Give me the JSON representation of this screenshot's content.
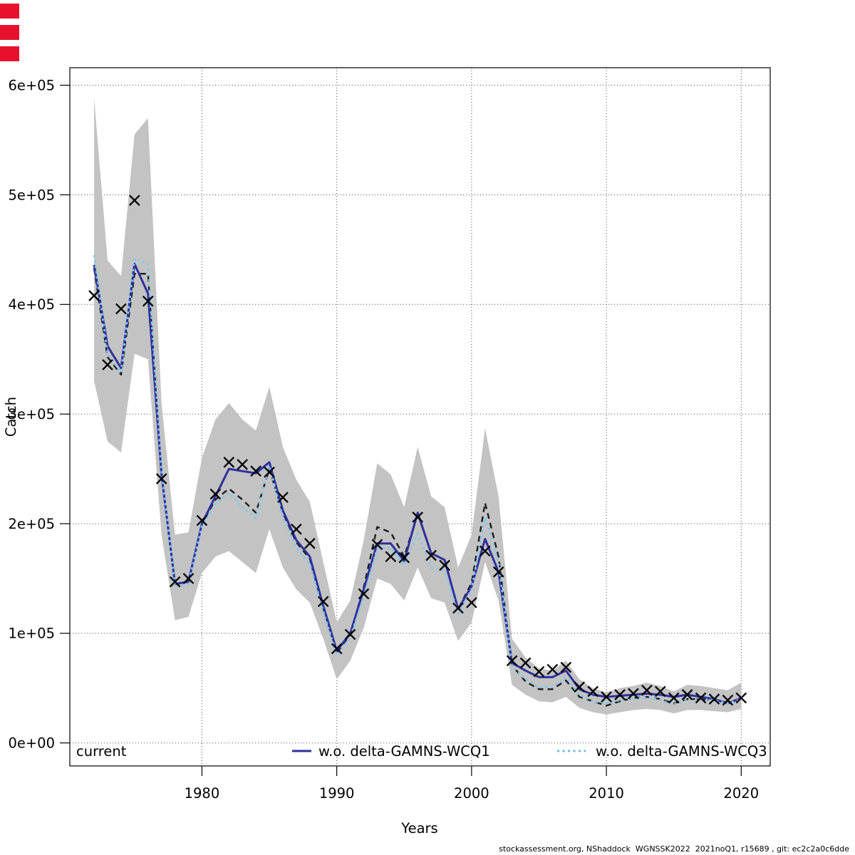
{
  "page": {
    "background": "#ffffff"
  },
  "corner_markers": {
    "count": 3,
    "color": "#e8112d"
  },
  "footer": {
    "text": "stockassessment.org, NShaddock  WGNSSK2022  2021noQ1, r15689 , git: ec2c2a0c6dde"
  },
  "legend": {
    "position": "bottom-inside",
    "items": [
      {
        "label": "current",
        "style": "none",
        "color": "#1c1c1c"
      },
      {
        "label": "w.o. delta-GAMNS-WCQ1",
        "style": "solid",
        "color": "#2f2f9e"
      },
      {
        "label": "w.o. delta-GAMNS-WCQ3",
        "style": "dotted",
        "color": "#6fb9e4"
      }
    ]
  },
  "chart_data": {
    "type": "line",
    "title": "",
    "xlabel": "Years",
    "ylabel": "Catch",
    "xlim": [
      1970.2,
      2022.15
    ],
    "ylim": [
      -21000,
      616000
    ],
    "grid": "dotted",
    "x_ticks": [
      1980,
      1990,
      2000,
      2010,
      2020
    ],
    "y_ticks": {
      "values": [
        0,
        100000,
        200000,
        300000,
        400000,
        500000,
        600000
      ],
      "labels": [
        "0e+00",
        "1e+05",
        "2e+05",
        "3e+05",
        "4e+05",
        "5e+05",
        "6e+05"
      ]
    },
    "years": [
      1972,
      1973,
      1974,
      1975,
      1976,
      1977,
      1978,
      1979,
      1980,
      1981,
      1982,
      1983,
      1984,
      1985,
      1986,
      1987,
      1988,
      1989,
      1990,
      1991,
      1992,
      1993,
      1994,
      1995,
      1996,
      1997,
      1998,
      1999,
      2000,
      2001,
      2002,
      2003,
      2004,
      2005,
      2006,
      2007,
      2008,
      2009,
      2010,
      2011,
      2012,
      2013,
      2014,
      2015,
      2016,
      2017,
      2018,
      2019,
      2020
    ],
    "band": {
      "name": "current-confidence-band",
      "color": "#c3c3c3",
      "upper": [
        588000,
        440000,
        426000,
        555000,
        570000,
        310000,
        190000,
        192000,
        260000,
        295000,
        310000,
        295000,
        285000,
        325000,
        270000,
        240000,
        220000,
        165000,
        110000,
        130000,
        185000,
        255000,
        245000,
        215000,
        270000,
        225000,
        215000,
        160000,
        190000,
        287000,
        225000,
        95000,
        78000,
        68000,
        66000,
        75000,
        58000,
        50000,
        46000,
        50000,
        52000,
        55000,
        52000,
        47000,
        53000,
        52000,
        50000,
        48000,
        55000
      ],
      "lower": [
        330000,
        275000,
        265000,
        355000,
        350000,
        190000,
        112000,
        115000,
        155000,
        170000,
        175000,
        165000,
        155000,
        195000,
        160000,
        140000,
        128000,
        95000,
        58000,
        75000,
        105000,
        150000,
        145000,
        130000,
        160000,
        132000,
        128000,
        93000,
        110000,
        165000,
        130000,
        53000,
        44000,
        38000,
        37000,
        42000,
        32000,
        28000,
        26000,
        28000,
        30000,
        31000,
        30000,
        27000,
        30000,
        30000,
        29000,
        28000,
        31000
      ]
    },
    "series": [
      {
        "name": "current",
        "style": "dashed",
        "color": "#1c1c1c",
        "values": [
          433000,
          352000,
          336000,
          428000,
          428000,
          245000,
          145000,
          147000,
          200000,
          222000,
          232000,
          222000,
          210000,
          250000,
          210000,
          183000,
          168000,
          123000,
          82000,
          99000,
          142000,
          197000,
          192000,
          170000,
          209000,
          173000,
          167000,
          122000,
          146000,
          219000,
          170000,
          71000,
          56000,
          49000,
          49000,
          57000,
          42000,
          38000,
          34000,
          38000,
          41000,
          42000,
          40000,
          36000,
          40000,
          40000,
          39000,
          37000,
          40000
        ]
      },
      {
        "name": "w.o. delta-GAMNS-WCQ1",
        "style": "solid",
        "color": "#2f2f9e",
        "values": [
          436000,
          362000,
          342000,
          437000,
          410000,
          245000,
          145000,
          147000,
          200000,
          225000,
          250000,
          248000,
          246000,
          256000,
          212000,
          185000,
          170000,
          125000,
          84000,
          100000,
          140000,
          182000,
          182000,
          166000,
          210000,
          173000,
          167000,
          122000,
          143000,
          186000,
          156000,
          73000,
          66000,
          60000,
          60000,
          66000,
          49000,
          44000,
          42000,
          43000,
          44000,
          45000,
          44000,
          42000,
          44000,
          42000,
          40000,
          36000,
          41000
        ]
      },
      {
        "name": "w.o. delta-GAMNS-WCQ3",
        "style": "dotted",
        "color": "#7fc9ee",
        "values": [
          445000,
          355000,
          338000,
          442000,
          437000,
          248000,
          143000,
          145000,
          198000,
          218000,
          228000,
          215000,
          205000,
          253000,
          205000,
          178000,
          163000,
          120000,
          80000,
          96000,
          133000,
          177000,
          178000,
          162000,
          191000,
          160000,
          157000,
          118000,
          140000,
          206000,
          164000,
          70000,
          58000,
          51000,
          51000,
          60000,
          44000,
          38000,
          36000,
          39000,
          40000,
          42000,
          39000,
          35000,
          40000,
          40000,
          39000,
          36000,
          40000
        ]
      }
    ],
    "markers": {
      "name": "observed-catch",
      "symbol": "x",
      "color": "#000000",
      "values": [
        408000,
        345000,
        396000,
        495000,
        403000,
        241000,
        147000,
        150000,
        203000,
        227000,
        256000,
        254000,
        248000,
        247000,
        224000,
        195000,
        182000,
        129000,
        86000,
        99000,
        136000,
        181000,
        170000,
        169000,
        206000,
        171000,
        162000,
        123000,
        128000,
        175000,
        156000,
        75000,
        73000,
        65000,
        67000,
        69000,
        51000,
        47000,
        42000,
        44000,
        45000,
        48000,
        47000,
        41000,
        44000,
        41000,
        40000,
        39000,
        41000
      ]
    }
  }
}
